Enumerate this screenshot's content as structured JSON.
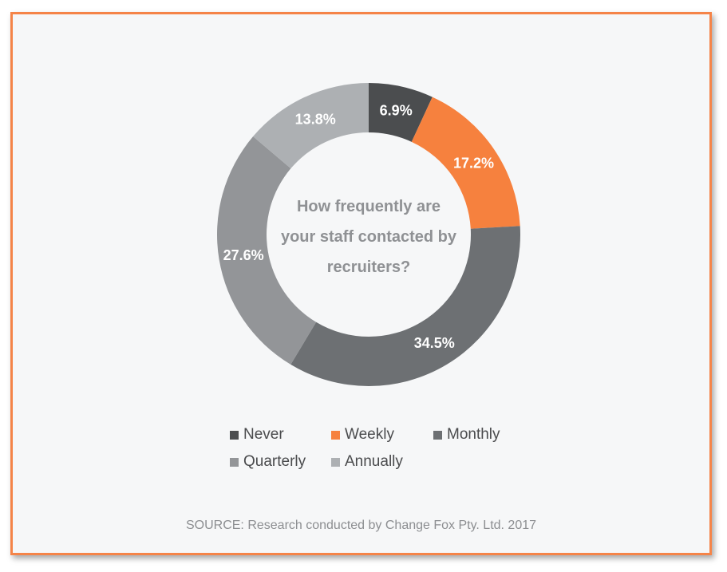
{
  "chart_data": {
    "type": "pie",
    "variant": "donut",
    "title": "How frequently are your staff contacted by recruiters?",
    "title_lines": [
      "How frequently are",
      "your staff contacted by",
      "recruiters?"
    ],
    "categories": [
      "Never",
      "Weekly",
      "Monthly",
      "Quarterly",
      "Annually"
    ],
    "values": [
      6.9,
      17.2,
      34.5,
      27.6,
      13.8
    ],
    "value_labels": [
      "6.9%",
      "17.2%",
      "34.5%",
      "27.6%",
      "13.8%"
    ],
    "colors": [
      "#4b4d4f",
      "#f6813e",
      "#6d7073",
      "#939598",
      "#adb0b3"
    ],
    "legend_position": "bottom",
    "source": "SOURCE: Research conducted by Change Fox Pty. Ltd. 2017"
  },
  "style": {
    "frame_color": "#f58448",
    "background": "#f6f7f8",
    "title_color": "#8f9194",
    "label_color": "#ffffff"
  }
}
